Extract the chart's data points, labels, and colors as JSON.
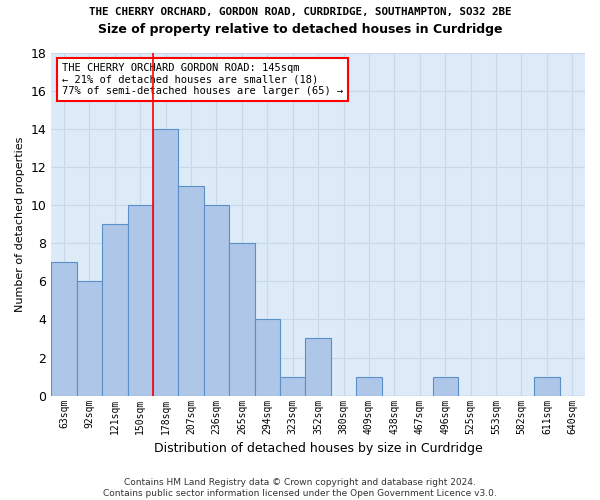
{
  "title1": "THE CHERRY ORCHARD, GORDON ROAD, CURDRIDGE, SOUTHAMPTON, SO32 2BE",
  "title2": "Size of property relative to detached houses in Curdridge",
  "xlabel": "Distribution of detached houses by size in Curdridge",
  "ylabel": "Number of detached properties",
  "bar_values": [
    7,
    6,
    9,
    10,
    14,
    11,
    10,
    8,
    4,
    1,
    3,
    0,
    1,
    0,
    0,
    1,
    0,
    0,
    0,
    1,
    0
  ],
  "bar_color": "#aec6e8",
  "bar_edge_color": "#5b8fc9",
  "bar_edge_width": 0.8,
  "grid_color": "#c8d8ea",
  "bg_color": "#ddeaf7",
  "red_line_x": 3.5,
  "ylim": [
    0,
    18
  ],
  "yticks": [
    0,
    2,
    4,
    6,
    8,
    10,
    12,
    14,
    16,
    18
  ],
  "annotation_text": "THE CHERRY ORCHARD GORDON ROAD: 145sqm\n← 21% of detached houses are smaller (18)\n77% of semi-detached houses are larger (65) →",
  "footer": "Contains HM Land Registry data © Crown copyright and database right 2024.\nContains public sector information licensed under the Open Government Licence v3.0.",
  "all_labels": [
    "63sqm",
    "92sqm",
    "121sqm",
    "150sqm",
    "178sqm",
    "207sqm",
    "236sqm",
    "265sqm",
    "294sqm",
    "323sqm",
    "352sqm",
    "380sqm",
    "409sqm",
    "438sqm",
    "467sqm",
    "496sqm",
    "525sqm",
    "553sqm",
    "582sqm",
    "611sqm",
    "640sqm"
  ]
}
